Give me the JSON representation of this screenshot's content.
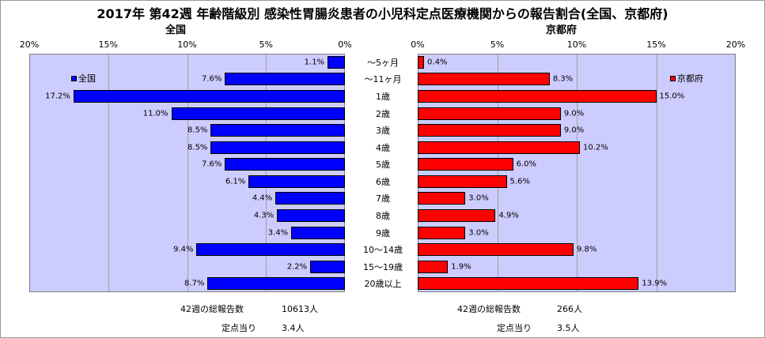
{
  "title": "2017年 第42週 年齢階級別 感染性胃腸炎患者の小児科定点医療機関からの報告割合(全国、京都府)",
  "left_title": "全国",
  "right_title": "京都府",
  "left_ticks": [
    "20%",
    "15%",
    "10%",
    "5%",
    "0%"
  ],
  "right_ticks": [
    "0%",
    "5%",
    "10%",
    "15%",
    "20%"
  ],
  "colors": {
    "national": "#0000ff",
    "kyoto": "#ff0000",
    "plot_bg": "#ccccff"
  },
  "chart_data": [
    {
      "type": "bar",
      "orientation": "horizontal",
      "title": "全国",
      "categories": [
        "～5ヶ月",
        "～11ヶ月",
        "1歳",
        "2歳",
        "3歳",
        "4歳",
        "5歳",
        "6歳",
        "7歳",
        "8歳",
        "9歳",
        "10～14歳",
        "15～19歳",
        "20歳以上"
      ],
      "series": [
        {
          "name": "全国",
          "values": [
            1.1,
            7.6,
            17.2,
            11.0,
            8.5,
            8.5,
            7.6,
            6.1,
            4.4,
            4.3,
            3.4,
            9.4,
            2.2,
            8.7
          ]
        }
      ],
      "labels": [
        "1.1%",
        "7.6%",
        "17.2%",
        "11.0%",
        "8.5%",
        "8.5%",
        "7.6%",
        "6.1%",
        "4.4%",
        "4.3%",
        "3.4%",
        "9.4%",
        "2.2%",
        "8.7%"
      ],
      "xlim": [
        0,
        20
      ],
      "x_reversed": true,
      "legend": "top-left",
      "grid": true
    },
    {
      "type": "bar",
      "orientation": "horizontal",
      "title": "京都府",
      "categories": [
        "～5ヶ月",
        "～11ヶ月",
        "1歳",
        "2歳",
        "3歳",
        "4歳",
        "5歳",
        "6歳",
        "7歳",
        "8歳",
        "9歳",
        "10～14歳",
        "15～19歳",
        "20歳以上"
      ],
      "series": [
        {
          "name": "京都府",
          "values": [
            0.4,
            8.3,
            15.0,
            9.0,
            9.0,
            10.2,
            6.0,
            5.6,
            3.0,
            4.9,
            3.0,
            9.8,
            1.9,
            13.9
          ]
        }
      ],
      "labels": [
        "0.4%",
        "8.3%",
        "15.0%",
        "9.0%",
        "9.0%",
        "10.2%",
        "6.0%",
        "5.6%",
        "3.0%",
        "4.9%",
        "3.0%",
        "9.8%",
        "1.9%",
        "13.9%"
      ],
      "xlim": [
        0,
        20
      ],
      "legend": "top-right",
      "grid": true
    }
  ],
  "footer": {
    "left_total_label": "42週の総報告数",
    "left_total_value": "10613人",
    "left_per_label": "定点当り",
    "left_per_value": "3.4人",
    "right_total_label": "42週の総報告数",
    "right_total_value": "266人",
    "right_per_label": "定点当り",
    "right_per_value": "3.5人"
  }
}
